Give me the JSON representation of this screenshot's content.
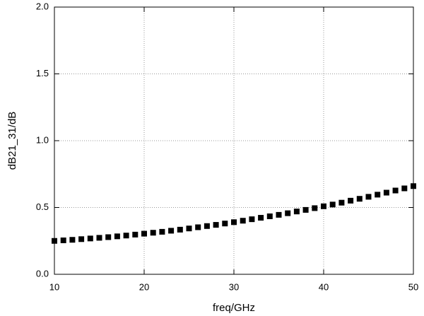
{
  "chart_data": {
    "type": "scatter",
    "x_label": "freq/GHz",
    "y_label": "dB21_31/dB",
    "x": [
      10,
      11,
      12,
      13,
      14,
      15,
      16,
      17,
      18,
      19,
      20,
      21,
      22,
      23,
      24,
      25,
      26,
      27,
      28,
      29,
      30,
      31,
      32,
      33,
      34,
      35,
      36,
      37,
      38,
      39,
      40,
      41,
      42,
      43,
      44,
      45,
      46,
      47,
      48,
      49,
      50
    ],
    "values": [
      0.25,
      0.254,
      0.258,
      0.263,
      0.268,
      0.273,
      0.278,
      0.284,
      0.29,
      0.297,
      0.304,
      0.311,
      0.318,
      0.326,
      0.334,
      0.343,
      0.352,
      0.361,
      0.37,
      0.38,
      0.39,
      0.401,
      0.412,
      0.423,
      0.434,
      0.445,
      0.457,
      0.47,
      0.482,
      0.495,
      0.509,
      0.522,
      0.536,
      0.551,
      0.565,
      0.58,
      0.596,
      0.611,
      0.627,
      0.643,
      0.66
    ],
    "color": "#000000",
    "xlim": [
      10,
      50
    ],
    "xticks": [
      10,
      20,
      30,
      40,
      50
    ],
    "ylim": [
      0,
      2
    ],
    "yticks": [
      {
        "value": 0,
        "label": "0.0"
      },
      0.5,
      {
        "value": 1,
        "label": "1.0"
      },
      1.5,
      {
        "value": 2,
        "label": "2.0"
      }
    ],
    "grid": true
  }
}
